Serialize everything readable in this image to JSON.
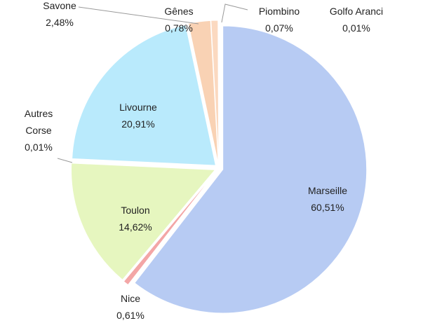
{
  "chart_data": {
    "type": "pie",
    "categories": [
      "Marseille",
      "Nice",
      "Toulon",
      "Autres Corse",
      "Livourne",
      "Savone",
      "Gênes",
      "Piombino",
      "Golfo Aranci"
    ],
    "values": [
      60.51,
      0.61,
      14.62,
      0.01,
      20.91,
      2.48,
      0.78,
      0.07,
      0.01
    ],
    "value_labels": [
      "60,51%",
      "0,61%",
      "14,62%",
      "0,01%",
      "20,91%",
      "2,48%",
      "0,78%",
      "0,07%",
      "0,01%"
    ],
    "colors": [
      "#b7cbf3",
      "#f3a6a6",
      "#e6f6bf",
      "#c9e6f5",
      "#b9eafc",
      "#f9d2b4",
      "#fbd9c0",
      "#e8e8e8",
      "#dfe6f2"
    ]
  }
}
